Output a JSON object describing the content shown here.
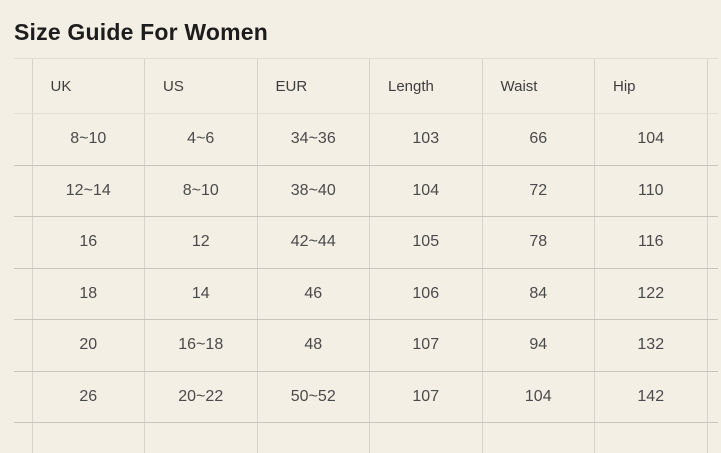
{
  "page": {
    "title": "Size Guide For Women"
  },
  "size_table": {
    "columns": [
      "UK",
      "US",
      "EUR",
      "Length",
      "Waist",
      "Hip"
    ],
    "rows": [
      [
        "8~10",
        "4~6",
        "34~36",
        "103",
        "66",
        "104"
      ],
      [
        "12~14",
        "8~10",
        "38~40",
        "104",
        "72",
        "110"
      ],
      [
        "16",
        "12",
        "42~44",
        "105",
        "78",
        "116"
      ],
      [
        "18",
        "14",
        "46",
        "106",
        "84",
        "122"
      ],
      [
        "20",
        "16~18",
        "48",
        "107",
        "94",
        "132"
      ],
      [
        "26",
        "20~22",
        "50~52",
        "107",
        "104",
        "142"
      ]
    ],
    "partial_row": [
      "",
      "",
      "",
      "",
      "",
      ""
    ]
  },
  "colors": {
    "background": "#f4efe5",
    "title_text": "#1d1d1d",
    "header_text": "#3e3e3e",
    "cell_text": "#4a4a4a",
    "row_divider": "#c8c5be",
    "column_divider": "#d6d3cb",
    "header_border": "#e2ded3"
  }
}
